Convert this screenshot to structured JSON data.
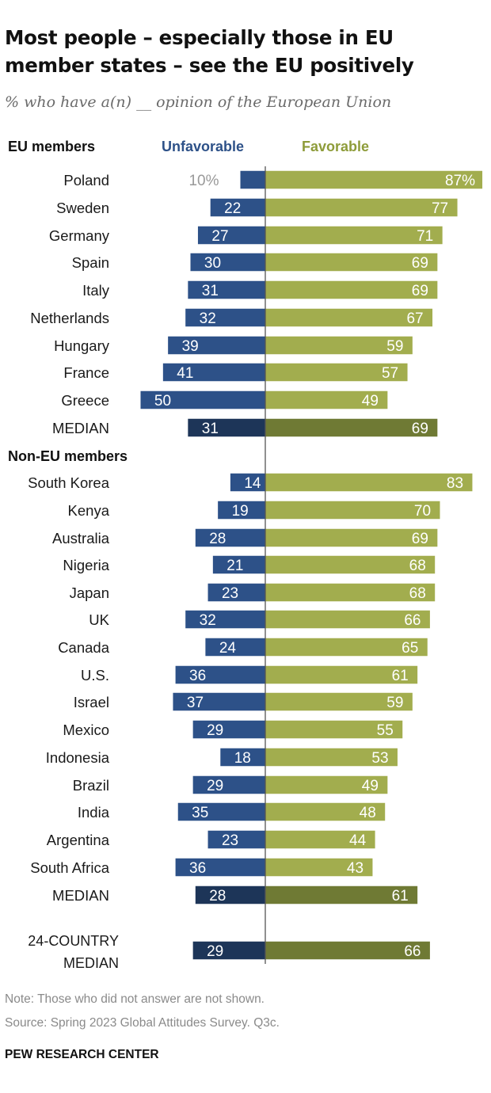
{
  "title": "Most people – especially those in EU member states – see the EU positively",
  "subtitle": "% who have a(n) __ opinion of the European Union",
  "sections": {
    "eu": "EU members",
    "non_eu": "Non-EU members"
  },
  "legend": {
    "unfavorable": "Unfavorable",
    "favorable": "Favorable"
  },
  "colors": {
    "unfavorable": "#2d5188",
    "favorable": "#a2ad4e",
    "unfavorable_median": "#1d3558",
    "favorable_median": "#6f7a34",
    "axis": "#555555"
  },
  "chart_data": {
    "type": "bar",
    "orientation": "horizontal-diverging",
    "series": [
      {
        "name": "Unfavorable",
        "direction": "left"
      },
      {
        "name": "Favorable",
        "direction": "right"
      }
    ],
    "rows": [
      {
        "label": "Poland",
        "unfavorable": 10,
        "favorable": 87,
        "unfav_text": "10%",
        "fav_text": "87%",
        "group": "eu"
      },
      {
        "label": "Sweden",
        "unfavorable": 22,
        "favorable": 77,
        "group": "eu"
      },
      {
        "label": "Germany",
        "unfavorable": 27,
        "favorable": 71,
        "group": "eu"
      },
      {
        "label": "Spain",
        "unfavorable": 30,
        "favorable": 69,
        "group": "eu"
      },
      {
        "label": "Italy",
        "unfavorable": 31,
        "favorable": 69,
        "group": "eu"
      },
      {
        "label": "Netherlands",
        "unfavorable": 32,
        "favorable": 67,
        "group": "eu"
      },
      {
        "label": "Hungary",
        "unfavorable": 39,
        "favorable": 59,
        "group": "eu"
      },
      {
        "label": "France",
        "unfavorable": 41,
        "favorable": 57,
        "group": "eu"
      },
      {
        "label": "Greece",
        "unfavorable": 50,
        "favorable": 49,
        "group": "eu"
      },
      {
        "label": "MEDIAN",
        "unfavorable": 31,
        "favorable": 69,
        "group": "eu",
        "median": true
      },
      {
        "label": "South Korea",
        "unfavorable": 14,
        "favorable": 83,
        "group": "non_eu"
      },
      {
        "label": "Kenya",
        "unfavorable": 19,
        "favorable": 70,
        "group": "non_eu"
      },
      {
        "label": "Australia",
        "unfavorable": 28,
        "favorable": 69,
        "group": "non_eu"
      },
      {
        "label": "Nigeria",
        "unfavorable": 21,
        "favorable": 68,
        "group": "non_eu"
      },
      {
        "label": "Japan",
        "unfavorable": 23,
        "favorable": 68,
        "group": "non_eu"
      },
      {
        "label": "UK",
        "unfavorable": 32,
        "favorable": 66,
        "group": "non_eu"
      },
      {
        "label": "Canada",
        "unfavorable": 24,
        "favorable": 65,
        "group": "non_eu"
      },
      {
        "label": "U.S.",
        "unfavorable": 36,
        "favorable": 61,
        "group": "non_eu"
      },
      {
        "label": "Israel",
        "unfavorable": 37,
        "favorable": 59,
        "group": "non_eu"
      },
      {
        "label": "Mexico",
        "unfavorable": 29,
        "favorable": 55,
        "group": "non_eu"
      },
      {
        "label": "Indonesia",
        "unfavorable": 18,
        "favorable": 53,
        "group": "non_eu"
      },
      {
        "label": "Brazil",
        "unfavorable": 29,
        "favorable": 49,
        "group": "non_eu"
      },
      {
        "label": "India",
        "unfavorable": 35,
        "favorable": 48,
        "group": "non_eu"
      },
      {
        "label": "Argentina",
        "unfavorable": 23,
        "favorable": 44,
        "group": "non_eu"
      },
      {
        "label": "South Africa",
        "unfavorable": 36,
        "favorable": 43,
        "group": "non_eu"
      },
      {
        "label": "MEDIAN",
        "unfavorable": 28,
        "favorable": 61,
        "group": "non_eu",
        "median": true
      },
      {
        "label": "24-COUNTRY MEDIAN",
        "label_lines": [
          "24-COUNTRY",
          "MEDIAN"
        ],
        "unfavorable": 29,
        "favorable": 66,
        "group": "overall",
        "median": true
      }
    ]
  },
  "footer": {
    "note": "Note: Those who did not answer are not shown.",
    "source": "Source: Spring 2023 Global Attitudes Survey. Q3c.",
    "brand": "PEW RESEARCH CENTER"
  }
}
